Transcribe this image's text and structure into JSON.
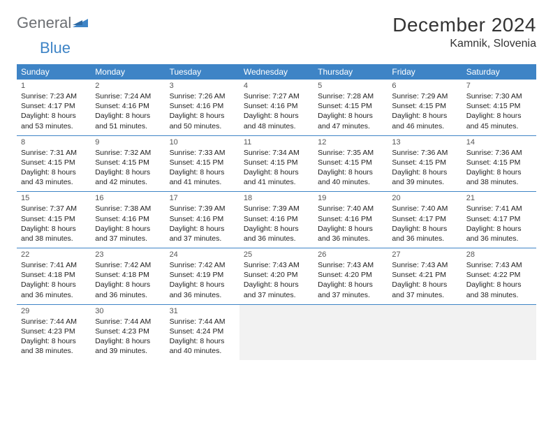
{
  "brand": {
    "word1": "General",
    "word2": "Blue",
    "word1_color": "#6c6f73",
    "word2_color": "#3e84c6",
    "mark_color": "#3e84c6"
  },
  "title": "December 2024",
  "location": "Kamnik, Slovenia",
  "colors": {
    "header_bg": "#3e84c6",
    "header_text": "#ffffff",
    "rule": "#3e84c6",
    "empty_cell_bg": "#f2f2f2",
    "cell_bg": "#ffffff",
    "text": "#222222",
    "page_bg": "#ffffff"
  },
  "layout": {
    "columns": 7,
    "font_family": "Arial",
    "day_num_fontsize": 11,
    "body_fontsize": 10.5,
    "title_fontsize": 28,
    "location_fontsize": 16
  },
  "weekdays": [
    "Sunday",
    "Monday",
    "Tuesday",
    "Wednesday",
    "Thursday",
    "Friday",
    "Saturday"
  ],
  "weeks": [
    [
      {
        "n": "1",
        "sr": "Sunrise: 7:23 AM",
        "ss": "Sunset: 4:17 PM",
        "d1": "Daylight: 8 hours",
        "d2": "and 53 minutes."
      },
      {
        "n": "2",
        "sr": "Sunrise: 7:24 AM",
        "ss": "Sunset: 4:16 PM",
        "d1": "Daylight: 8 hours",
        "d2": "and 51 minutes."
      },
      {
        "n": "3",
        "sr": "Sunrise: 7:26 AM",
        "ss": "Sunset: 4:16 PM",
        "d1": "Daylight: 8 hours",
        "d2": "and 50 minutes."
      },
      {
        "n": "4",
        "sr": "Sunrise: 7:27 AM",
        "ss": "Sunset: 4:16 PM",
        "d1": "Daylight: 8 hours",
        "d2": "and 48 minutes."
      },
      {
        "n": "5",
        "sr": "Sunrise: 7:28 AM",
        "ss": "Sunset: 4:15 PM",
        "d1": "Daylight: 8 hours",
        "d2": "and 47 minutes."
      },
      {
        "n": "6",
        "sr": "Sunrise: 7:29 AM",
        "ss": "Sunset: 4:15 PM",
        "d1": "Daylight: 8 hours",
        "d2": "and 46 minutes."
      },
      {
        "n": "7",
        "sr": "Sunrise: 7:30 AM",
        "ss": "Sunset: 4:15 PM",
        "d1": "Daylight: 8 hours",
        "d2": "and 45 minutes."
      }
    ],
    [
      {
        "n": "8",
        "sr": "Sunrise: 7:31 AM",
        "ss": "Sunset: 4:15 PM",
        "d1": "Daylight: 8 hours",
        "d2": "and 43 minutes."
      },
      {
        "n": "9",
        "sr": "Sunrise: 7:32 AM",
        "ss": "Sunset: 4:15 PM",
        "d1": "Daylight: 8 hours",
        "d2": "and 42 minutes."
      },
      {
        "n": "10",
        "sr": "Sunrise: 7:33 AM",
        "ss": "Sunset: 4:15 PM",
        "d1": "Daylight: 8 hours",
        "d2": "and 41 minutes."
      },
      {
        "n": "11",
        "sr": "Sunrise: 7:34 AM",
        "ss": "Sunset: 4:15 PM",
        "d1": "Daylight: 8 hours",
        "d2": "and 41 minutes."
      },
      {
        "n": "12",
        "sr": "Sunrise: 7:35 AM",
        "ss": "Sunset: 4:15 PM",
        "d1": "Daylight: 8 hours",
        "d2": "and 40 minutes."
      },
      {
        "n": "13",
        "sr": "Sunrise: 7:36 AM",
        "ss": "Sunset: 4:15 PM",
        "d1": "Daylight: 8 hours",
        "d2": "and 39 minutes."
      },
      {
        "n": "14",
        "sr": "Sunrise: 7:36 AM",
        "ss": "Sunset: 4:15 PM",
        "d1": "Daylight: 8 hours",
        "d2": "and 38 minutes."
      }
    ],
    [
      {
        "n": "15",
        "sr": "Sunrise: 7:37 AM",
        "ss": "Sunset: 4:15 PM",
        "d1": "Daylight: 8 hours",
        "d2": "and 38 minutes."
      },
      {
        "n": "16",
        "sr": "Sunrise: 7:38 AM",
        "ss": "Sunset: 4:16 PM",
        "d1": "Daylight: 8 hours",
        "d2": "and 37 minutes."
      },
      {
        "n": "17",
        "sr": "Sunrise: 7:39 AM",
        "ss": "Sunset: 4:16 PM",
        "d1": "Daylight: 8 hours",
        "d2": "and 37 minutes."
      },
      {
        "n": "18",
        "sr": "Sunrise: 7:39 AM",
        "ss": "Sunset: 4:16 PM",
        "d1": "Daylight: 8 hours",
        "d2": "and 36 minutes."
      },
      {
        "n": "19",
        "sr": "Sunrise: 7:40 AM",
        "ss": "Sunset: 4:16 PM",
        "d1": "Daylight: 8 hours",
        "d2": "and 36 minutes."
      },
      {
        "n": "20",
        "sr": "Sunrise: 7:40 AM",
        "ss": "Sunset: 4:17 PM",
        "d1": "Daylight: 8 hours",
        "d2": "and 36 minutes."
      },
      {
        "n": "21",
        "sr": "Sunrise: 7:41 AM",
        "ss": "Sunset: 4:17 PM",
        "d1": "Daylight: 8 hours",
        "d2": "and 36 minutes."
      }
    ],
    [
      {
        "n": "22",
        "sr": "Sunrise: 7:41 AM",
        "ss": "Sunset: 4:18 PM",
        "d1": "Daylight: 8 hours",
        "d2": "and 36 minutes."
      },
      {
        "n": "23",
        "sr": "Sunrise: 7:42 AM",
        "ss": "Sunset: 4:18 PM",
        "d1": "Daylight: 8 hours",
        "d2": "and 36 minutes."
      },
      {
        "n": "24",
        "sr": "Sunrise: 7:42 AM",
        "ss": "Sunset: 4:19 PM",
        "d1": "Daylight: 8 hours",
        "d2": "and 36 minutes."
      },
      {
        "n": "25",
        "sr": "Sunrise: 7:43 AM",
        "ss": "Sunset: 4:20 PM",
        "d1": "Daylight: 8 hours",
        "d2": "and 37 minutes."
      },
      {
        "n": "26",
        "sr": "Sunrise: 7:43 AM",
        "ss": "Sunset: 4:20 PM",
        "d1": "Daylight: 8 hours",
        "d2": "and 37 minutes."
      },
      {
        "n": "27",
        "sr": "Sunrise: 7:43 AM",
        "ss": "Sunset: 4:21 PM",
        "d1": "Daylight: 8 hours",
        "d2": "and 37 minutes."
      },
      {
        "n": "28",
        "sr": "Sunrise: 7:43 AM",
        "ss": "Sunset: 4:22 PM",
        "d1": "Daylight: 8 hours",
        "d2": "and 38 minutes."
      }
    ],
    [
      {
        "n": "29",
        "sr": "Sunrise: 7:44 AM",
        "ss": "Sunset: 4:23 PM",
        "d1": "Daylight: 8 hours",
        "d2": "and 38 minutes."
      },
      {
        "n": "30",
        "sr": "Sunrise: 7:44 AM",
        "ss": "Sunset: 4:23 PM",
        "d1": "Daylight: 8 hours",
        "d2": "and 39 minutes."
      },
      {
        "n": "31",
        "sr": "Sunrise: 7:44 AM",
        "ss": "Sunset: 4:24 PM",
        "d1": "Daylight: 8 hours",
        "d2": "and 40 minutes."
      },
      null,
      null,
      null,
      null
    ]
  ]
}
